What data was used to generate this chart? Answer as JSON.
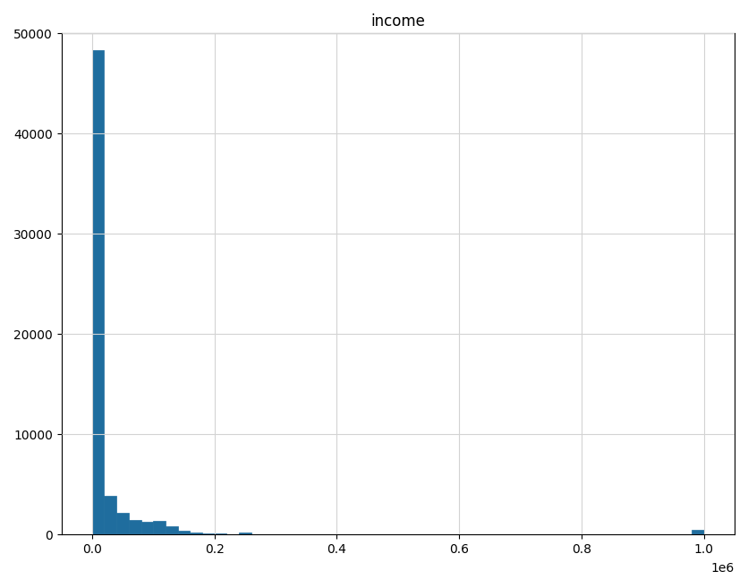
{
  "title": "income",
  "bar_color": "#1f6d9e",
  "bar_edge_color": "#1f6d9e",
  "xlim": [
    -50000,
    1050000
  ],
  "ylim": [
    0,
    50000
  ],
  "yticks": [
    0,
    10000,
    20000,
    30000,
    40000,
    50000
  ],
  "xtick_labels": [
    "0.0",
    "0.2",
    "0.4",
    "0.6",
    "0.8",
    "1.0"
  ],
  "xticks": [
    0,
    200000,
    400000,
    600000,
    800000,
    1000000
  ],
  "xlabel_offset": "1e6",
  "grid": true,
  "figsize": [
    8.36,
    6.57
  ],
  "dpi": 100,
  "bins": 50,
  "bin_edges": [
    0,
    20000,
    40000,
    60000,
    80000,
    100000,
    120000,
    140000,
    160000,
    180000,
    200000,
    220000,
    240000,
    260000,
    280000,
    300000,
    320000,
    340000,
    360000,
    380000,
    400000,
    420000,
    440000,
    460000,
    480000,
    500000,
    520000,
    540000,
    560000,
    580000,
    600000,
    620000,
    640000,
    660000,
    680000,
    700000,
    720000,
    740000,
    760000,
    780000,
    800000,
    820000,
    840000,
    860000,
    880000,
    900000,
    920000,
    940000,
    960000,
    980000,
    1000000
  ],
  "bin_counts": [
    48300,
    3900,
    2200,
    1500,
    1300,
    1400,
    800,
    400,
    200,
    100,
    150,
    50,
    200,
    50,
    30,
    20,
    10,
    10,
    10,
    10,
    5,
    5,
    5,
    5,
    5,
    5,
    5,
    5,
    5,
    5,
    5,
    5,
    5,
    5,
    5,
    5,
    5,
    5,
    5,
    5,
    5,
    5,
    5,
    5,
    5,
    5,
    5,
    5,
    5,
    500
  ]
}
